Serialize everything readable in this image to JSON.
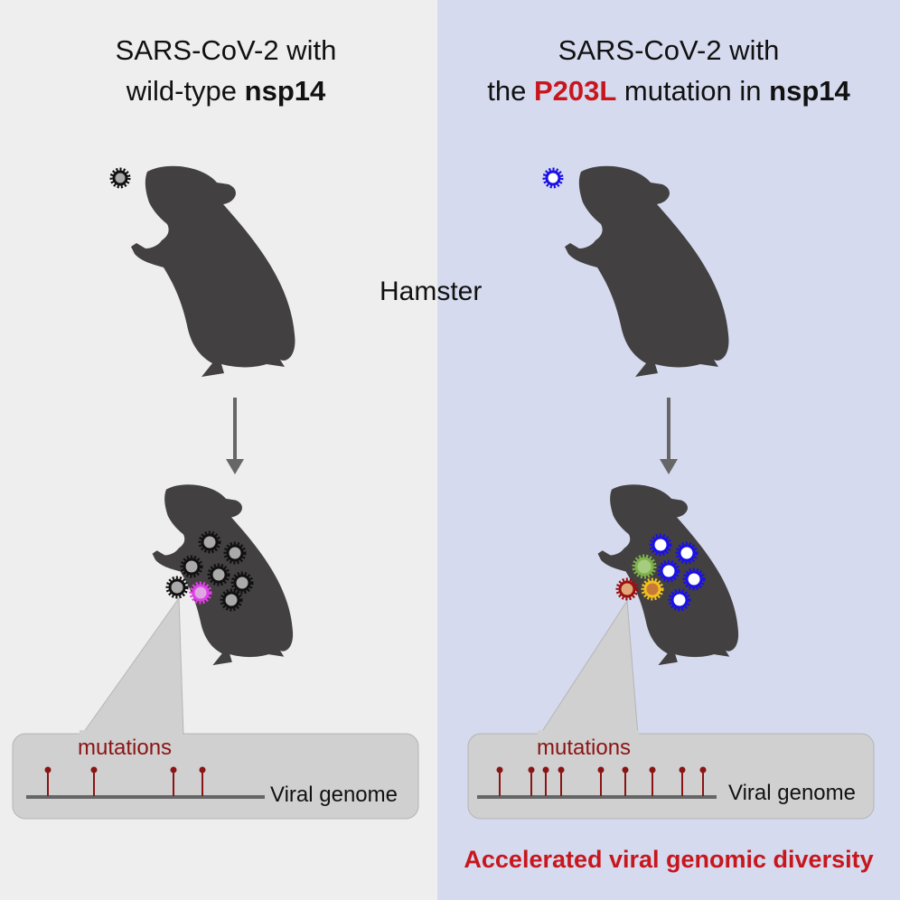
{
  "left_panel": {
    "title_line1": "SARS-CoV-2 with",
    "title_line2_prefix": "wild-type ",
    "title_line2_bold": "nsp14",
    "mutations_label": "mutations",
    "genome_label": "Viral genome",
    "virus_color": "#111111",
    "mutant_virus_color": "#e040e8"
  },
  "right_panel": {
    "title_line1": "SARS-CoV-2 with",
    "title_line2_prefix": "the ",
    "title_line2_red": "P203L",
    "title_line2_mid": " mutation in ",
    "title_line2_bold": "nsp14",
    "mutations_label": "mutations",
    "genome_label": "Viral genome",
    "virus_color": "#1a10e8",
    "mutant_virus_colors": [
      "#7fb24a",
      "#9b1010",
      "#f0c020"
    ],
    "conclusion": "Accelerated viral genomic diversity"
  },
  "center_label": "Hamster",
  "colors": {
    "left_bg": "#eeeeee",
    "right_bg": "#d5daee",
    "hamster": "#434041",
    "accent_red": "#c8161d",
    "mutation_marker": "#8b1414"
  }
}
